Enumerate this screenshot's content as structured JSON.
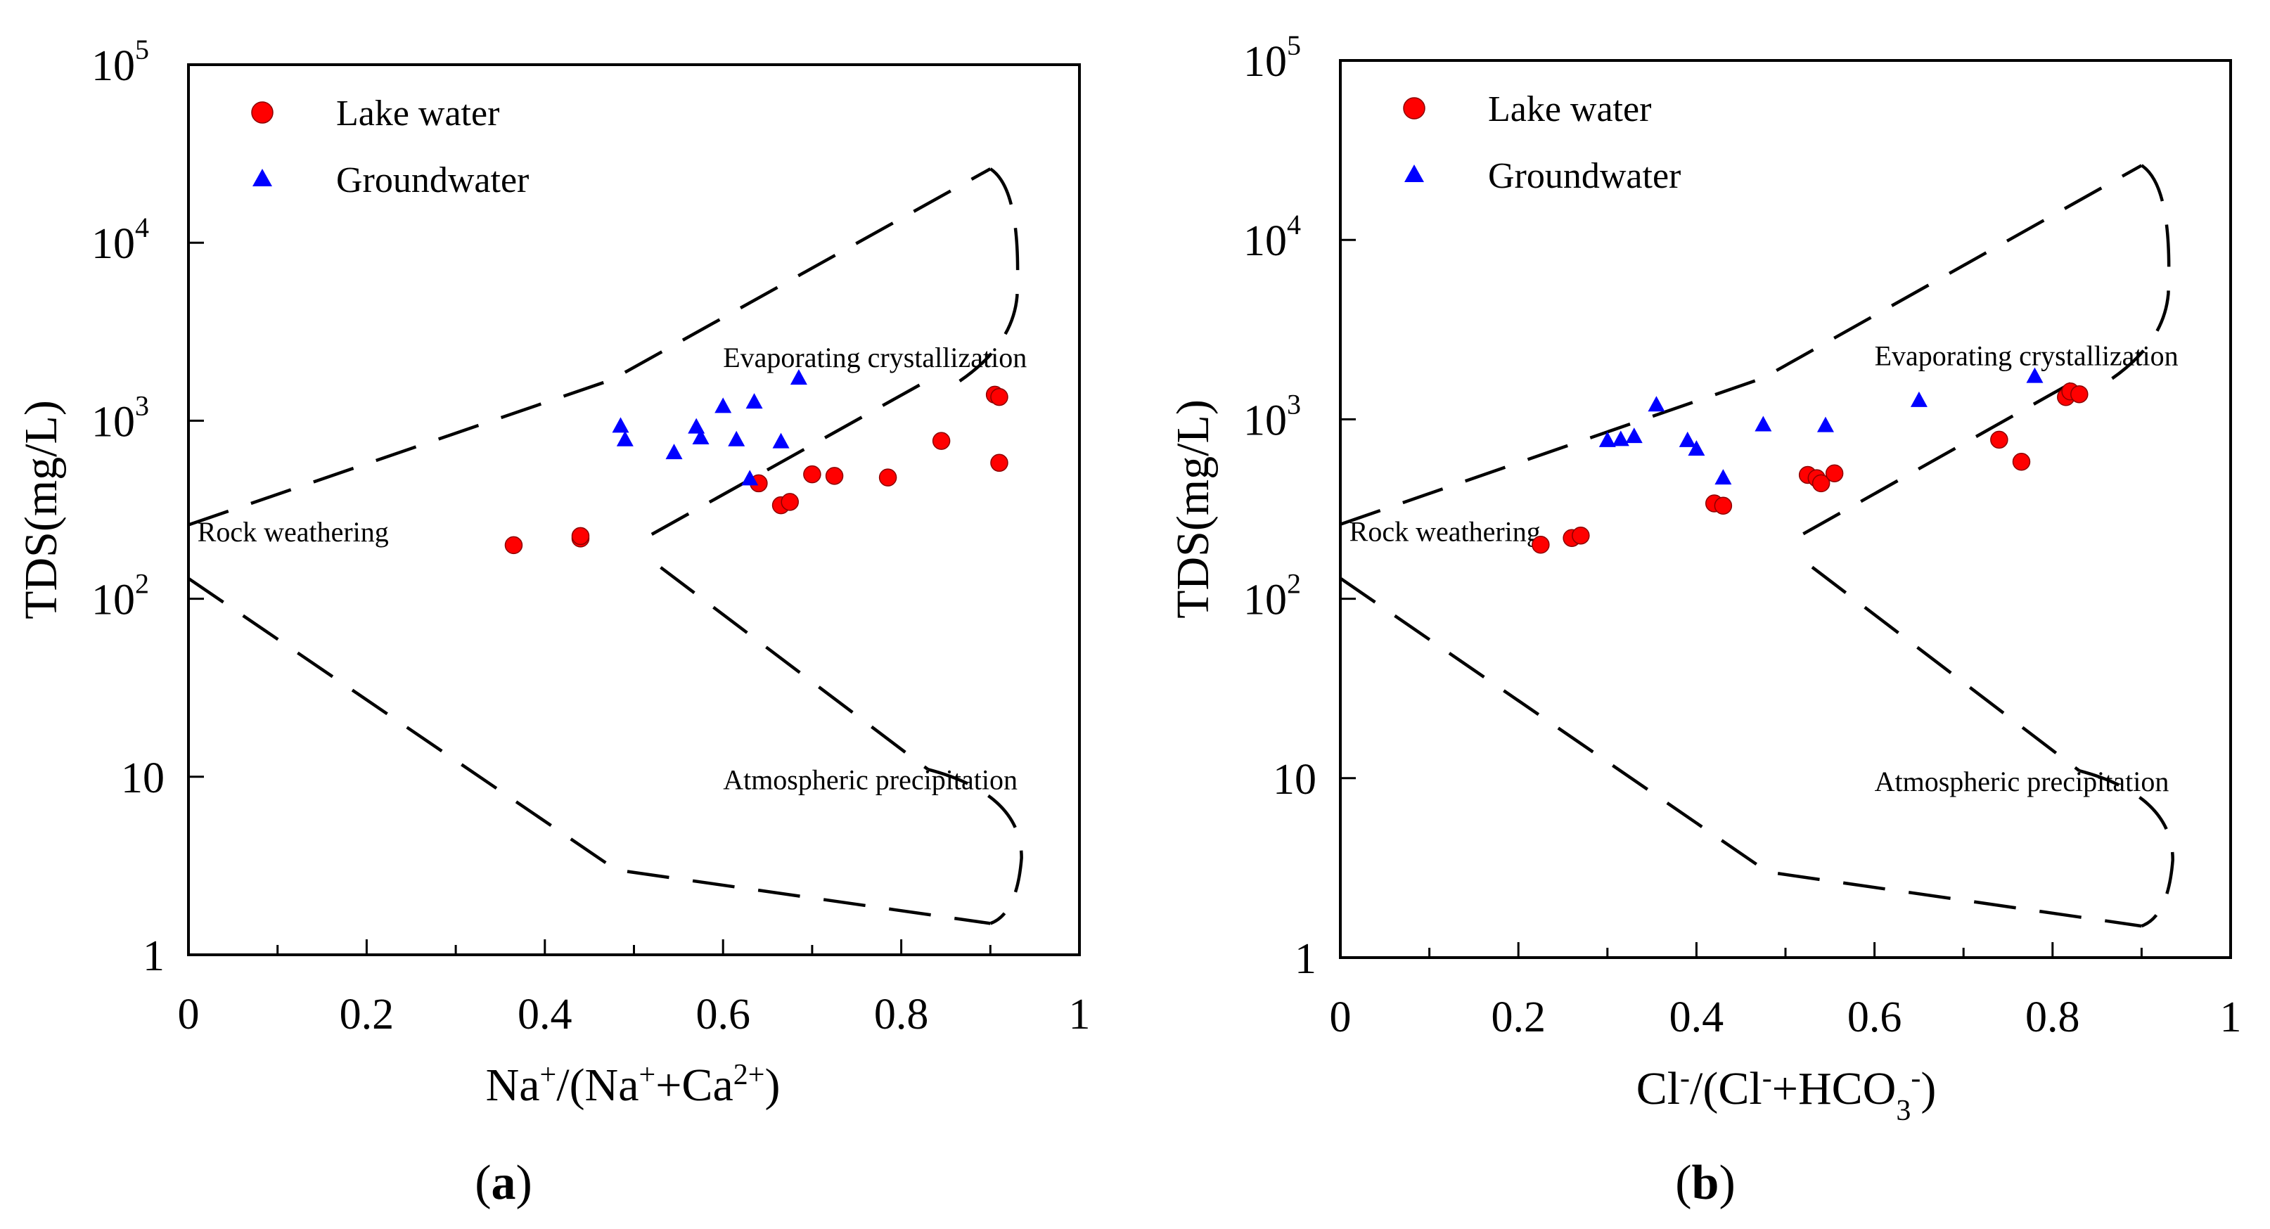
{
  "chart_data": [
    {
      "type": "scatter",
      "panel_label": "a",
      "ylabel": "TDS(mg/L)",
      "xlabel": {
        "parts": [
          {
            "t": "Na"
          },
          {
            "t": "+",
            "sup": true
          },
          {
            "t": "/(Na"
          },
          {
            "t": "+",
            "sup": true
          },
          {
            "t": "+Ca"
          },
          {
            "t": "2+",
            "sup": true
          },
          {
            "t": ")"
          }
        ]
      },
      "xlim": [
        0,
        1
      ],
      "ylim": [
        1,
        100000
      ],
      "y_scale": "log",
      "xtick_labels": [
        "0",
        "0.2",
        "0.4",
        "0.6",
        "0.8",
        "1"
      ],
      "ytick_labels": [
        {
          "value": 100000,
          "base": "10",
          "exp": "5"
        },
        {
          "value": 10000,
          "base": "10",
          "exp": "4"
        },
        {
          "value": 1000,
          "base": "10",
          "exp": "3"
        },
        {
          "value": 100,
          "base": "10",
          "exp": "2"
        },
        {
          "value": 10,
          "base": "10",
          "exp": ""
        },
        {
          "value": 1,
          "base": "1",
          "exp": ""
        }
      ],
      "legend": {
        "placement": "top-left",
        "entries": [
          {
            "name": "Lake water",
            "marker": "circle",
            "color": "#ff0000"
          },
          {
            "name": "Groundwater",
            "marker": "triangle",
            "color": "#0000ff"
          }
        ]
      },
      "region_labels": [
        {
          "text": "Evaporating crystallization",
          "x": 0.6,
          "y": 2000
        },
        {
          "text": "Rock weathering",
          "x": 0.01,
          "y": 210
        },
        {
          "text": "Atmospheric precipitation",
          "x": 0.6,
          "y": 8.5
        }
      ],
      "boundary": [
        {
          "points": [
            [
              0,
              260
            ],
            [
              0.475,
              1700
            ],
            [
              0.9,
              26000
            ]
          ]
        },
        {
          "points": [
            [
              0,
              130
            ],
            [
              0.48,
              3
            ],
            [
              0.9,
              1.5
            ]
          ]
        },
        {
          "points": [
            [
              0.52,
              230
            ],
            [
              0.84,
              1800
            ]
          ]
        },
        {
          "points": [
            [
              0.53,
              150
            ],
            [
              0.83,
              11
            ]
          ]
        }
      ],
      "series": [
        {
          "name": "Lake water",
          "color": "#ff0000",
          "points": [
            [
              0.365,
              200
            ],
            [
              0.44,
              218
            ],
            [
              0.44,
              225
            ],
            [
              0.64,
              445
            ],
            [
              0.665,
              335
            ],
            [
              0.675,
              350
            ],
            [
              0.7,
              500
            ],
            [
              0.725,
              490
            ],
            [
              0.785,
              480
            ],
            [
              0.845,
              770
            ],
            [
              0.905,
              1400
            ],
            [
              0.91,
              1360
            ],
            [
              0.91,
              580
            ]
          ]
        },
        {
          "name": "Groundwater",
          "color": "#0000ff",
          "points": [
            [
              0.485,
              930
            ],
            [
              0.49,
              780
            ],
            [
              0.545,
              660
            ],
            [
              0.57,
              920
            ],
            [
              0.575,
              800
            ],
            [
              0.6,
              1200
            ],
            [
              0.615,
              780
            ],
            [
              0.63,
              470
            ],
            [
              0.635,
              1270
            ],
            [
              0.665,
              760
            ],
            [
              0.685,
              1730
            ]
          ]
        }
      ]
    },
    {
      "type": "scatter",
      "panel_label": "b",
      "ylabel": "TDS(mg/L)",
      "xlabel": {
        "parts": [
          {
            "t": "Cl"
          },
          {
            "t": "-",
            "sup": true
          },
          {
            "t": "/(Cl"
          },
          {
            "t": "-",
            "sup": true
          },
          {
            "t": "+HCO"
          },
          {
            "t": "3",
            "sub": true
          },
          {
            "t": "-",
            "sup": true
          },
          {
            "t": ")"
          }
        ]
      },
      "xlim": [
        0,
        1
      ],
      "ylim": [
        1,
        100000
      ],
      "y_scale": "log",
      "xtick_labels": [
        "0",
        "0.2",
        "0.4",
        "0.6",
        "0.8",
        "1"
      ],
      "ytick_labels": [
        {
          "value": 100000,
          "base": "10",
          "exp": "5"
        },
        {
          "value": 10000,
          "base": "10",
          "exp": "4"
        },
        {
          "value": 1000,
          "base": "10",
          "exp": "3"
        },
        {
          "value": 100,
          "base": "10",
          "exp": "2"
        },
        {
          "value": 10,
          "base": "10",
          "exp": ""
        },
        {
          "value": 1,
          "base": "1",
          "exp": ""
        }
      ],
      "legend": {
        "placement": "top-left",
        "entries": [
          {
            "name": "Lake water",
            "marker": "circle",
            "color": "#ff0000"
          },
          {
            "name": "Groundwater",
            "marker": "triangle",
            "color": "#0000ff"
          }
        ]
      },
      "region_labels": [
        {
          "text": "Evaporating crystallization",
          "x": 0.6,
          "y": 2000
        },
        {
          "text": "Rock weathering",
          "x": 0.01,
          "y": 210
        },
        {
          "text": "Atmospheric precipitation",
          "x": 0.6,
          "y": 8.5
        }
      ],
      "boundary": [
        {
          "points": [
            [
              0,
              260
            ],
            [
              0.475,
              1700
            ],
            [
              0.9,
              26000
            ]
          ]
        },
        {
          "points": [
            [
              0,
              130
            ],
            [
              0.48,
              3
            ],
            [
              0.9,
              1.5
            ]
          ]
        },
        {
          "points": [
            [
              0.52,
              230
            ],
            [
              0.84,
              1800
            ]
          ]
        },
        {
          "points": [
            [
              0.53,
              150
            ],
            [
              0.83,
              11
            ]
          ]
        }
      ],
      "series": [
        {
          "name": "Lake water",
          "color": "#ff0000",
          "points": [
            [
              0.225,
              200
            ],
            [
              0.26,
              218
            ],
            [
              0.27,
              225
            ],
            [
              0.42,
              340
            ],
            [
              0.43,
              330
            ],
            [
              0.525,
              490
            ],
            [
              0.535,
              470
            ],
            [
              0.54,
              440
            ],
            [
              0.555,
              500
            ],
            [
              0.74,
              770
            ],
            [
              0.765,
              580
            ],
            [
              0.815,
              1330
            ],
            [
              0.82,
              1430
            ],
            [
              0.83,
              1380
            ]
          ]
        },
        {
          "name": "Groundwater",
          "color": "#0000ff",
          "points": [
            [
              0.3,
              760
            ],
            [
              0.315,
              770
            ],
            [
              0.33,
              800
            ],
            [
              0.355,
              1200
            ],
            [
              0.39,
              760
            ],
            [
              0.4,
              680
            ],
            [
              0.43,
              470
            ],
            [
              0.475,
              930
            ],
            [
              0.545,
              920
            ],
            [
              0.65,
              1270
            ],
            [
              0.78,
              1730
            ]
          ]
        }
      ]
    }
  ]
}
